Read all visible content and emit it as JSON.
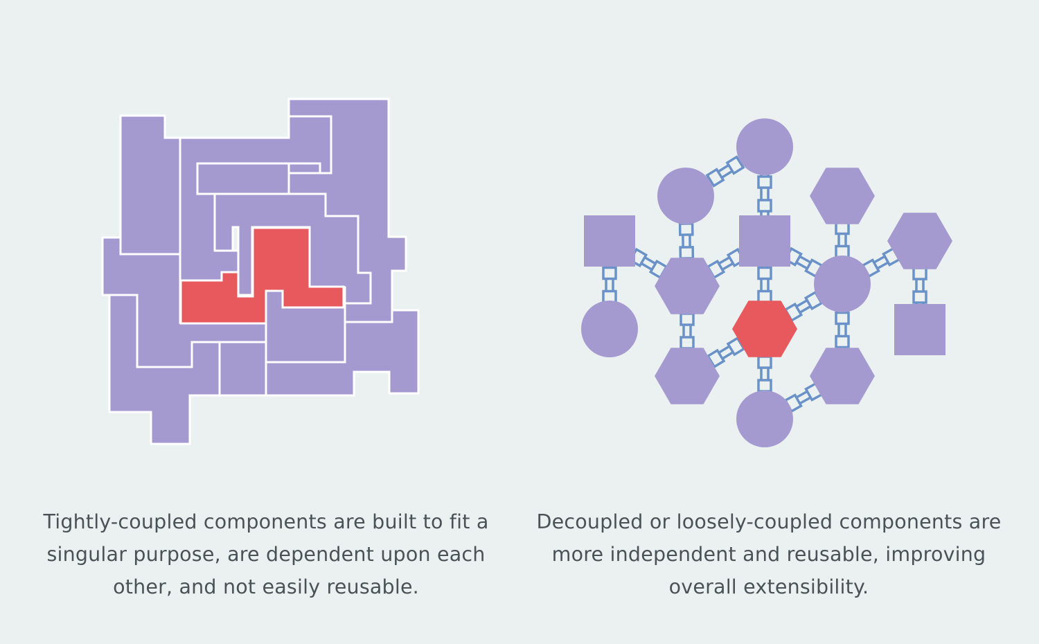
{
  "colors": {
    "background": "#ebf1f1",
    "component": "#a59ad0",
    "highlight": "#e8595e",
    "connector": "#6a92c8",
    "border": "#ffffff",
    "text": "#4a5257"
  },
  "tightly_coupled": {
    "caption": "Tightly-coupled components are built to fit a singular purpose, are dependent upon each other, and not easily reusable."
  },
  "loosely_coupled": {
    "caption": "Decoupled or loosely-coupled components are more independent and reusable, improving overall extensibility."
  }
}
